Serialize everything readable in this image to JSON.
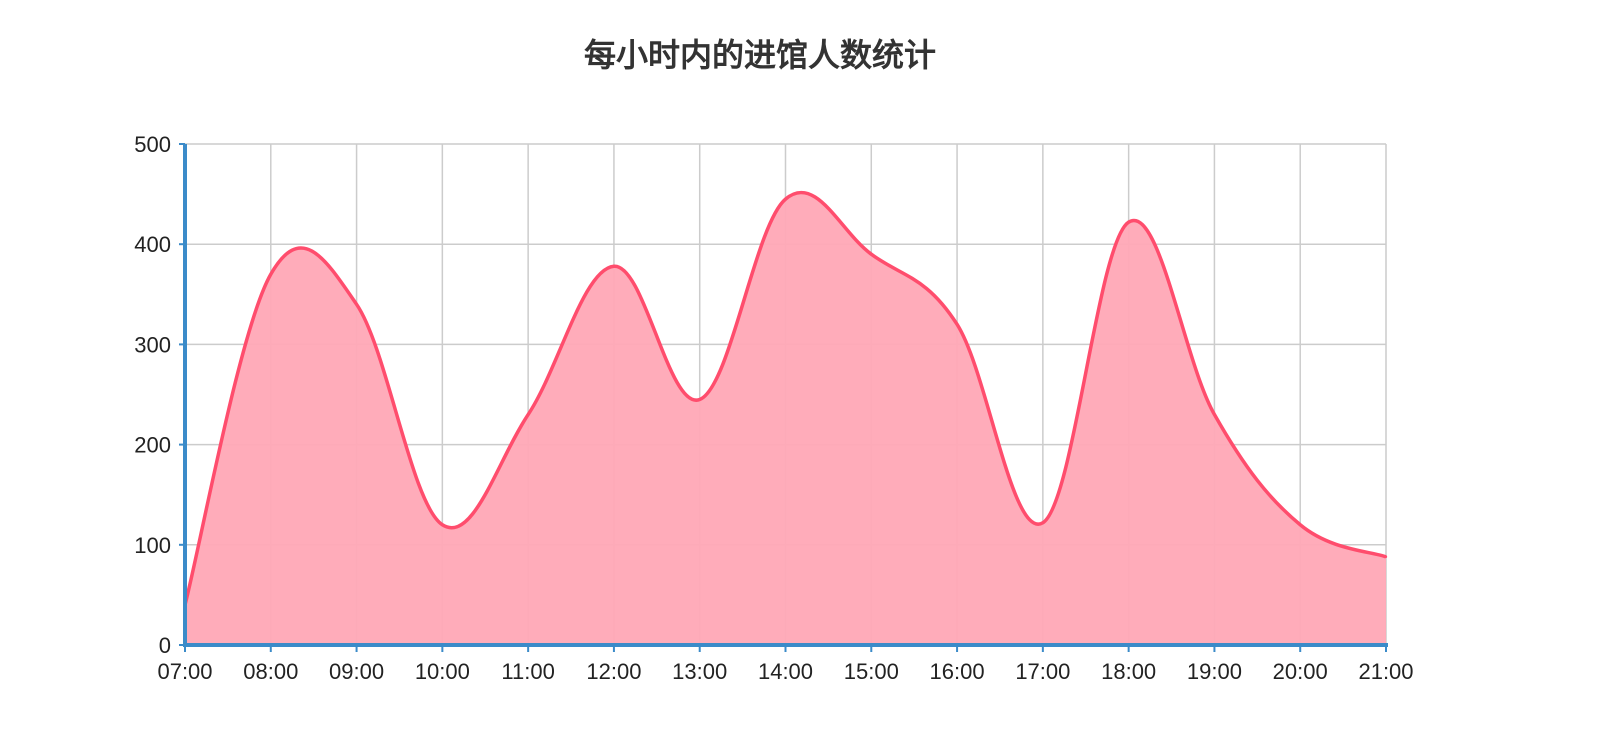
{
  "chart_data": {
    "type": "area",
    "title": "每小时内的进馆人数统计",
    "xlabel": "",
    "ylabel": "",
    "categories": [
      "07:00",
      "08:00",
      "09:00",
      "10:00",
      "11:00",
      "12:00",
      "13:00",
      "14:00",
      "15:00",
      "16:00",
      "17:00",
      "18:00",
      "19:00",
      "20:00",
      "21:00"
    ],
    "series": [
      {
        "values": [
          40,
          370,
          340,
          120,
          230,
          378,
          245,
          445,
          390,
          320,
          122,
          422,
          230,
          120,
          88
        ]
      }
    ],
    "ylim": [
      0,
      500
    ],
    "yticks": [
      "0",
      "100",
      "200",
      "300",
      "400",
      "500"
    ],
    "grid": true,
    "legend": "none",
    "colors": {
      "line": "#ff4d6d",
      "fill": "#ffa8b6",
      "axis": "#3b8bc9",
      "grid": "#cccccc"
    }
  }
}
